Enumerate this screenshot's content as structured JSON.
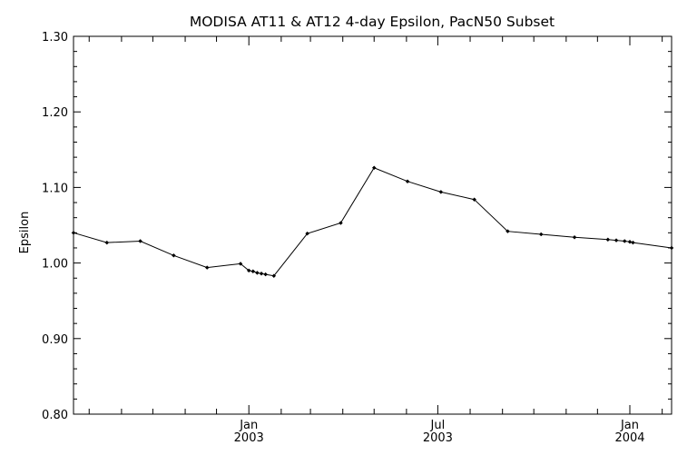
{
  "chart_data": {
    "type": "line",
    "title": "MODISA AT11 & AT12 4-day Epsilon, PacN50 Subset",
    "xlabel": "",
    "ylabel": "Epsilon",
    "xlim": [
      "2002-07-17",
      "2004-02-10"
    ],
    "ylim": [
      0.8,
      1.3
    ],
    "grid": false,
    "legend": "none",
    "line_color": "#000000",
    "y_ticks": [
      {
        "value": 0.8,
        "label": "0.80"
      },
      {
        "value": 0.9,
        "label": "0.90"
      },
      {
        "value": 1.0,
        "label": "1.00"
      },
      {
        "value": 1.1,
        "label": "1.10"
      },
      {
        "value": 1.2,
        "label": "1.20"
      },
      {
        "value": 1.3,
        "label": "1.30"
      }
    ],
    "x_major_ticks": [
      {
        "date": "2003-01-01",
        "month": "Jan",
        "year": "2003"
      },
      {
        "date": "2003-07-01",
        "month": "Jul",
        "year": "2003"
      },
      {
        "date": "2004-01-01",
        "month": "Jan",
        "year": "2004"
      }
    ],
    "x_minor_ticks": [
      "2002-08-01",
      "2002-09-01",
      "2002-10-01",
      "2002-11-01",
      "2002-12-01",
      "2003-02-01",
      "2003-03-01",
      "2003-04-01",
      "2003-05-01",
      "2003-06-01",
      "2003-08-01",
      "2003-09-01",
      "2003-10-01",
      "2003-11-01",
      "2003-12-01",
      "2004-02-01"
    ],
    "series": [
      {
        "x": [
          "2002-07-17",
          "2002-08-18",
          "2002-09-19",
          "2002-10-21",
          "2002-11-22",
          "2002-12-24",
          "2003-01-01",
          "2003-01-05",
          "2003-01-09",
          "2003-01-13",
          "2003-01-17",
          "2003-01-25",
          "2003-02-26",
          "2003-03-30",
          "2003-05-01",
          "2003-06-02",
          "2003-07-04",
          "2003-08-05",
          "2003-09-06",
          "2003-10-08",
          "2003-11-09",
          "2003-12-11",
          "2003-12-19",
          "2003-12-27",
          "2004-01-01",
          "2004-01-04",
          "2004-02-10"
        ],
        "y": [
          1.04,
          1.027,
          1.029,
          1.01,
          0.994,
          0.999,
          0.99,
          0.989,
          0.987,
          0.986,
          0.985,
          0.983,
          1.039,
          1.053,
          1.126,
          1.108,
          1.094,
          1.084,
          1.042,
          1.038,
          1.034,
          1.031,
          1.03,
          1.029,
          1.028,
          1.027,
          1.02
        ]
      }
    ]
  }
}
